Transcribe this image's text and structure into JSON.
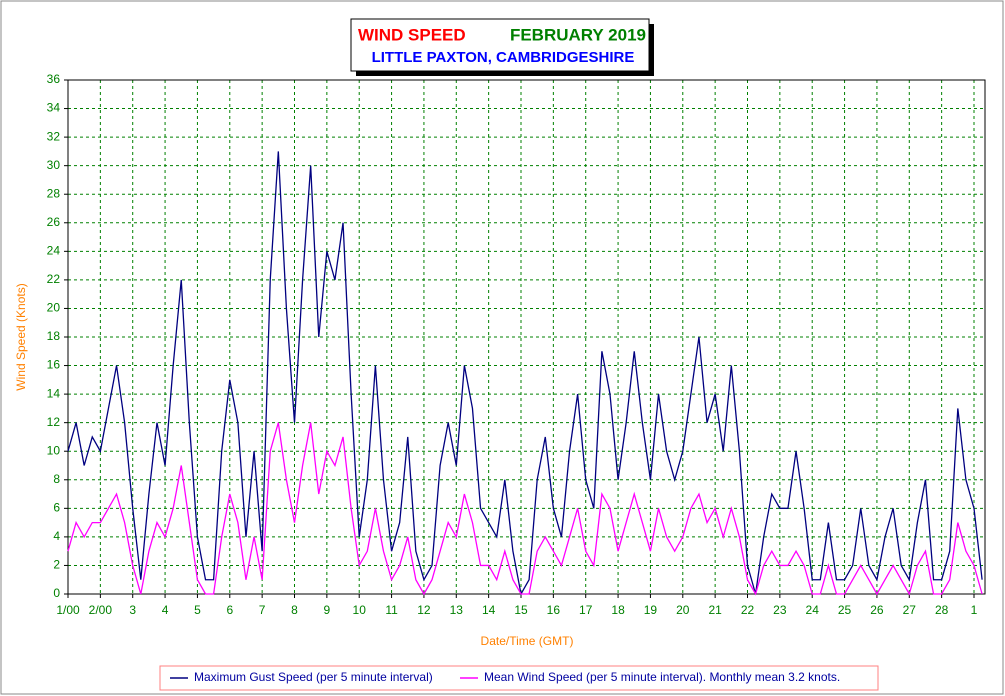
{
  "chart_data": {
    "type": "line",
    "title": "WIND SPEED",
    "title_month": "FEBRUARY 2019",
    "subtitle": "LITTLE PAXTON, CAMBRIDGESHIRE",
    "x_label": "Date/Time (GMT)",
    "y_label": "Wind Speed (Knots)",
    "x": [
      1,
      1.25,
      1.5,
      1.75,
      2,
      2.25,
      2.5,
      2.75,
      3,
      3.25,
      3.5,
      3.75,
      4,
      4.25,
      4.5,
      4.75,
      5,
      5.25,
      5.5,
      5.75,
      6,
      6.25,
      6.5,
      6.75,
      7,
      7.25,
      7.5,
      7.75,
      8,
      8.25,
      8.5,
      8.75,
      9,
      9.25,
      9.5,
      9.75,
      10,
      10.25,
      10.5,
      10.75,
      11,
      11.25,
      11.5,
      11.75,
      12,
      12.25,
      12.5,
      12.75,
      13,
      13.25,
      13.5,
      13.75,
      14,
      14.25,
      14.5,
      14.75,
      15,
      15.25,
      15.5,
      15.75,
      16,
      16.25,
      16.5,
      16.75,
      17,
      17.25,
      17.5,
      17.75,
      18,
      18.25,
      18.5,
      18.75,
      19,
      19.25,
      19.5,
      19.75,
      20,
      20.25,
      20.5,
      20.75,
      21,
      21.25,
      21.5,
      21.75,
      22,
      22.25,
      22.5,
      22.75,
      23,
      23.25,
      23.5,
      23.75,
      24,
      24.25,
      24.5,
      24.75,
      25,
      25.25,
      25.5,
      25.75,
      26,
      26.25,
      26.5,
      26.75,
      27,
      27.25,
      27.5,
      27.75,
      28,
      28.25,
      28.5,
      28.75,
      29,
      29.25
    ],
    "series": [
      {
        "name": "Maximum Gust Speed (per 5 minute interval)",
        "color": "#000080",
        "values": [
          10,
          12,
          9,
          11,
          10,
          13,
          16,
          12,
          6,
          1,
          7,
          12,
          9,
          16,
          22,
          12,
          4,
          1,
          1,
          10,
          15,
          12,
          4,
          10,
          3,
          22,
          31,
          20,
          12,
          22,
          30,
          18,
          24,
          22,
          26,
          14,
          4,
          8,
          16,
          8,
          3,
          5,
          11,
          3,
          1,
          2,
          9,
          12,
          9,
          16,
          13,
          6,
          5,
          4,
          8,
          3,
          0,
          1,
          8,
          11,
          6,
          4,
          10,
          14,
          8,
          6,
          17,
          14,
          8,
          12,
          17,
          12,
          8,
          14,
          10,
          8,
          10,
          14,
          18,
          12,
          14,
          10,
          16,
          10,
          2,
          0,
          4,
          7,
          6,
          6,
          10,
          6,
          1,
          1,
          5,
          1,
          1,
          2,
          6,
          2,
          1,
          4,
          6,
          2,
          1,
          5,
          8,
          1,
          1,
          3,
          13,
          8,
          6,
          1
        ]
      },
      {
        "name": "Mean Wind Speed (per 5 minute interval). Monthly mean 3.2 knots.",
        "color": "#ff00ff",
        "values": [
          3,
          5,
          4,
          5,
          5,
          6,
          7,
          5,
          2,
          0,
          3,
          5,
          4,
          6,
          9,
          5,
          1,
          0,
          0,
          4,
          7,
          5,
          1,
          4,
          1,
          10,
          12,
          8,
          5,
          9,
          12,
          7,
          10,
          9,
          11,
          6,
          2,
          3,
          6,
          3,
          1,
          2,
          4,
          1,
          0,
          1,
          3,
          5,
          4,
          7,
          5,
          2,
          2,
          1,
          3,
          1,
          0,
          0,
          3,
          4,
          3,
          2,
          4,
          6,
          3,
          2,
          7,
          6,
          3,
          5,
          7,
          5,
          3,
          6,
          4,
          3,
          4,
          6,
          7,
          5,
          6,
          4,
          6,
          4,
          1,
          0,
          2,
          3,
          2,
          2,
          3,
          2,
          0,
          0,
          2,
          0,
          0,
          1,
          2,
          1,
          0,
          1,
          2,
          1,
          0,
          2,
          3,
          0,
          0,
          1,
          5,
          3,
          2,
          0
        ]
      }
    ],
    "xlim": [
      1,
      29.34
    ],
    "xticks": [
      {
        "value": 1,
        "label": "1/00"
      },
      {
        "value": 2,
        "label": "2/00"
      },
      3,
      4,
      5,
      6,
      7,
      8,
      9,
      10,
      11,
      12,
      13,
      14,
      15,
      16,
      17,
      18,
      19,
      20,
      21,
      22,
      23,
      24,
      25,
      26,
      27,
      28,
      {
        "value": 29,
        "label": "1"
      }
    ],
    "ylim": [
      0,
      36
    ],
    "yticks": [
      0,
      2,
      4,
      6,
      8,
      10,
      12,
      14,
      16,
      18,
      20,
      22,
      24,
      26,
      28,
      30,
      32,
      34,
      36
    ],
    "grid": true,
    "legend": "bottom"
  }
}
